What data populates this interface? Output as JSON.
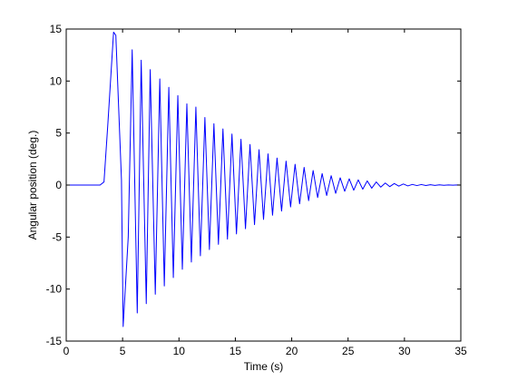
{
  "chart_data": {
    "type": "line",
    "title": "",
    "xlabel": "Time (s)",
    "ylabel": "Angular position (deg.)",
    "xlim": [
      0,
      35
    ],
    "ylim": [
      -15,
      15
    ],
    "xticks": [
      0,
      5,
      10,
      15,
      20,
      25,
      30,
      35
    ],
    "yticks": [
      -15,
      -10,
      -5,
      0,
      5,
      10,
      15
    ],
    "xtick_labels": [
      "0",
      "5",
      "10",
      "15",
      "20",
      "25",
      "30",
      "35"
    ],
    "ytick_labels": [
      "-15",
      "-10",
      "-5",
      "0",
      "5",
      "10",
      "15"
    ],
    "grid": false,
    "legend": "none",
    "series": [
      {
        "color": "#0000ff",
        "x": [
          0,
          3.0,
          3.35,
          3.7,
          4.2,
          4.4,
          4.9,
          5.05,
          5.5,
          5.85,
          6.3,
          6.65,
          7.1,
          7.45,
          7.9,
          8.3,
          8.7,
          9.1,
          9.5,
          9.9,
          10.3,
          10.7,
          11.1,
          11.5,
          11.9,
          12.3,
          12.7,
          13.1,
          13.5,
          13.9,
          14.3,
          14.7,
          15.1,
          15.5,
          15.9,
          16.3,
          16.7,
          17.1,
          17.5,
          17.9,
          18.3,
          18.7,
          19.1,
          19.5,
          19.9,
          20.3,
          20.7,
          21.1,
          21.5,
          21.9,
          22.3,
          22.7,
          23.1,
          23.5,
          23.9,
          24.3,
          24.7,
          25.1,
          25.5,
          25.9,
          26.3,
          26.7,
          27.1,
          27.5,
          27.9,
          28.3,
          28.7,
          29.1,
          29.5,
          29.9,
          30.3,
          30.7,
          31.1,
          31.5,
          31.9,
          32.3,
          32.7,
          33.1,
          33.5,
          33.9,
          34.3,
          34.7,
          35
        ],
        "y": [
          0,
          0,
          0.3,
          6.0,
          14.7,
          14.4,
          0.5,
          -13.6,
          -5.0,
          13.0,
          -12.3,
          12.0,
          -11.4,
          11.1,
          -10.5,
          10.2,
          -9.7,
          9.4,
          -8.9,
          8.6,
          -8.1,
          7.8,
          -7.4,
          7.5,
          -6.8,
          6.5,
          -6.2,
          5.9,
          -5.7,
          5.4,
          -5.2,
          4.9,
          -4.7,
          4.4,
          -4.2,
          3.9,
          -3.8,
          3.4,
          -3.3,
          3.0,
          -2.9,
          2.6,
          -2.5,
          2.3,
          -2.1,
          2.0,
          -1.8,
          1.7,
          -1.5,
          1.4,
          -1.2,
          1.1,
          -1.0,
          0.9,
          -0.8,
          0.7,
          -0.6,
          0.6,
          -0.5,
          0.5,
          -0.4,
          0.4,
          -0.3,
          0.3,
          -0.2,
          0.2,
          -0.15,
          0.15,
          -0.1,
          0.1,
          -0.08,
          0.06,
          -0.05,
          0.05,
          -0.04,
          0.03,
          -0.03,
          0.02,
          -0.02,
          0.01,
          -0.01,
          0.01,
          0
        ]
      }
    ]
  }
}
